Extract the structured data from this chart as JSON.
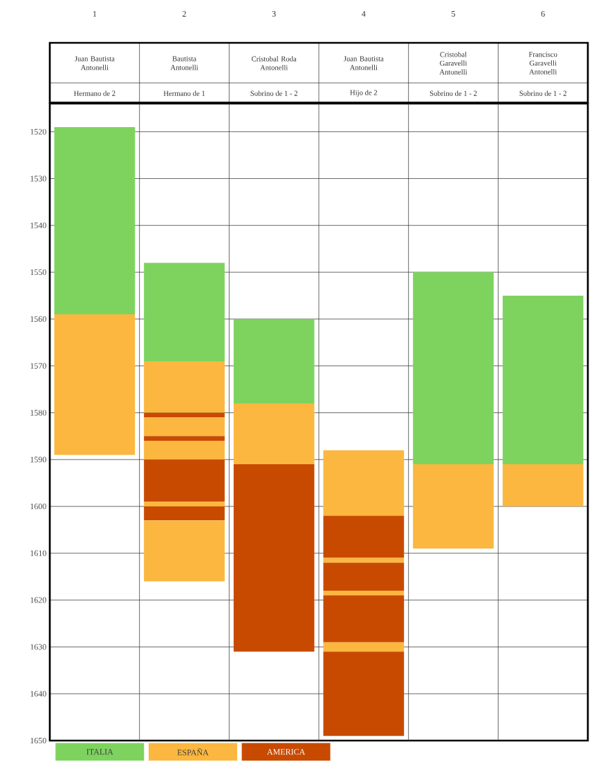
{
  "chart_data": {
    "type": "bar",
    "categories": [
      "Juan Bautista Antonelli",
      "Bautista Antonelli",
      "Cristobal Roda Antonelli",
      "Juan Bautista Antonelli",
      "Cristobal Garavelli Antonelli",
      "Francisco Garavelli Antonelli"
    ],
    "annotations": [
      "1",
      "2",
      "3",
      "4",
      "5",
      "6",
      "Hermano de 2",
      "Hermano de 1",
      "Sobrino de 1 - 2",
      "Hijo de 2",
      "Sobrino de 1 - 2",
      "Sobrino de 1 - 2"
    ],
    "series": [
      {
        "name": "ITALIA",
        "color": "#7ed35f",
        "base": [
          1519,
          1548,
          1560,
          null,
          1550,
          1555
        ],
        "values": [
          40,
          21,
          18,
          null,
          41,
          36
        ]
      },
      {
        "name": "ESPAÑA",
        "color": "#fbb73f",
        "base": [
          1559,
          1569,
          1578,
          1588,
          1591,
          1591
        ],
        "values": [
          30,
          11,
          13,
          14,
          18,
          9
        ]
      },
      {
        "name": "AMERICA",
        "color": "#c84a00",
        "base": [
          null,
          1580,
          1591,
          1602,
          null,
          null
        ],
        "values": [
          null,
          1,
          40,
          9,
          null,
          null
        ]
      },
      {
        "color": "#fbb73f",
        "base": [
          null,
          1581,
          null,
          1611,
          null,
          null
        ],
        "values": [
          null,
          4,
          null,
          1,
          null,
          null
        ]
      },
      {
        "color": "#c84a00",
        "base": [
          null,
          1585,
          null,
          1612,
          null,
          null
        ],
        "values": [
          null,
          1,
          null,
          6,
          null,
          null
        ]
      },
      {
        "color": "#fbb73f",
        "base": [
          null,
          1586,
          null,
          1618,
          null,
          null
        ],
        "values": [
          null,
          4,
          null,
          1,
          null,
          null
        ]
      },
      {
        "color": "#c84a00",
        "base": [
          null,
          1590,
          null,
          1619,
          null,
          null
        ],
        "values": [
          null,
          9,
          null,
          10,
          null,
          null
        ]
      },
      {
        "color": "#fbb73f",
        "base": [
          null,
          1599,
          null,
          1629,
          null,
          null
        ],
        "values": [
          null,
          1,
          null,
          2,
          null,
          null
        ]
      },
      {
        "color": "#c84a00",
        "base": [
          null,
          1600,
          null,
          1631,
          null,
          null
        ],
        "values": [
          null,
          3,
          null,
          18,
          null,
          null
        ]
      },
      {
        "color": "#fbb73f",
        "base": [
          null,
          1603,
          null,
          null,
          null,
          null
        ],
        "values": [
          null,
          13,
          null,
          null,
          null,
          null
        ]
      }
    ],
    "ylim": [
      1650,
      1514
    ],
    "yticks": [
      1520,
      1530,
      1540,
      1550,
      1560,
      1570,
      1580,
      1590,
      1600,
      1610,
      1620,
      1630,
      1640,
      1650
    ],
    "grid": "y",
    "legend": "bottom left"
  }
}
